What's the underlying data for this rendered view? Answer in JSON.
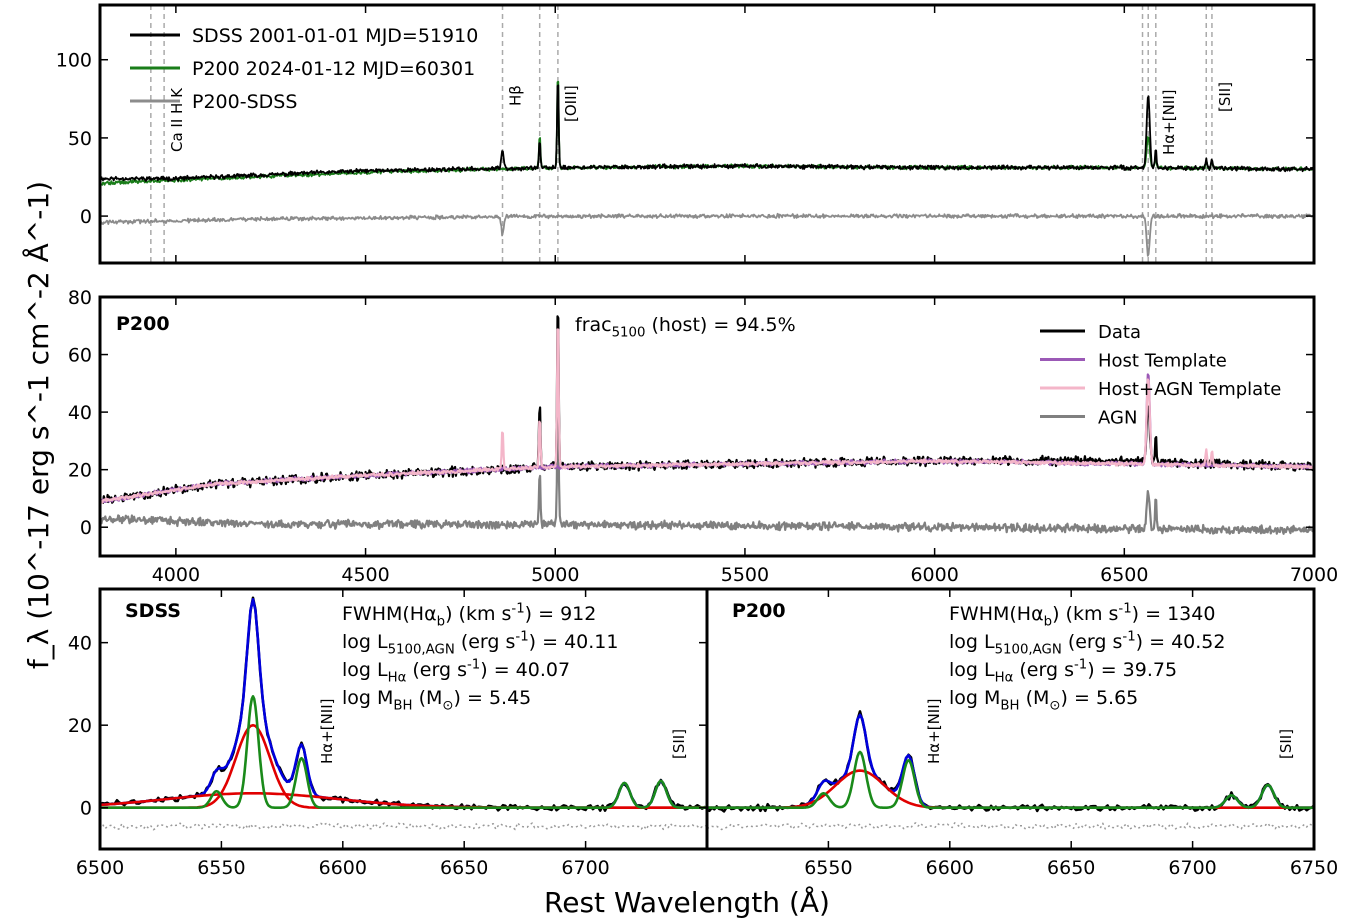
{
  "figure": {
    "ylabel": "f_λ (10^-17 erg s^-1 cm^-2 Å^-1)",
    "xlabel": "Rest Wavelength (Å)"
  },
  "chart_data": [
    {
      "type": "line",
      "panel": "top",
      "xlim": [
        3800,
        7000
      ],
      "ylim": [
        -30,
        135
      ],
      "y_ticks": [
        0,
        50,
        100
      ],
      "legend": {
        "placement": "top-left",
        "entries": [
          {
            "label": "SDSS 2001-01-01 MJD=51910",
            "color": "#000000"
          },
          {
            "label": "P200 2024-01-12 MJD=60301",
            "color": "#1a7d1a"
          },
          {
            "label": "P200-SDSS",
            "color": "#8c8c8c"
          }
        ]
      },
      "line_markers": [
        {
          "label": "Ca II H K",
          "x": [
            3934,
            3969
          ]
        },
        {
          "label": "Hβ",
          "x": [
            4861
          ]
        },
        {
          "label": "[OIII]",
          "x": [
            4959,
            5007
          ]
        },
        {
          "label": "Hα+[NII]",
          "x": [
            6548,
            6563,
            6583
          ]
        },
        {
          "label": "[SII]",
          "x": [
            6716,
            6731
          ]
        }
      ],
      "series": [
        {
          "name": "SDSS 2001-01-01 MJD=51910",
          "color": "#000000",
          "continuum": [
            [
              3800,
              24
            ],
            [
              4000,
              24
            ],
            [
              4500,
              29
            ],
            [
              5000,
              31
            ],
            [
              5500,
              32
            ],
            [
              6000,
              31
            ],
            [
              6500,
              31
            ],
            [
              7000,
              30
            ]
          ],
          "peaks": [
            {
              "x": 4861,
              "h": 12,
              "w": 3
            },
            {
              "x": 4959,
              "h": 18,
              "w": 2
            },
            {
              "x": 5007,
              "h": 60,
              "w": 2
            },
            {
              "x": 6563,
              "h": 47,
              "w": 4
            },
            {
              "x": 6583,
              "h": 12,
              "w": 2
            },
            {
              "x": 6716,
              "h": 6,
              "w": 2
            },
            {
              "x": 6731,
              "h": 6,
              "w": 2
            }
          ]
        },
        {
          "name": "P200 2024-01-12 MJD=60301",
          "color": "#1a7d1a",
          "continuum": [
            [
              3800,
              21
            ],
            [
              4000,
              23
            ],
            [
              4500,
              28
            ],
            [
              5000,
              31
            ],
            [
              5500,
              32
            ],
            [
              6000,
              31
            ],
            [
              6500,
              31
            ],
            [
              7000,
              30
            ]
          ],
          "peaks": [
            {
              "x": 4959,
              "h": 22,
              "w": 2
            },
            {
              "x": 5007,
              "h": 62,
              "w": 2
            },
            {
              "x": 6563,
              "h": 20,
              "w": 4
            },
            {
              "x": 6583,
              "h": 8,
              "w": 2
            },
            {
              "x": 6716,
              "h": 5,
              "w": 2
            },
            {
              "x": 6731,
              "h": 5,
              "w": 2
            }
          ]
        },
        {
          "name": "P200-SDSS",
          "color": "#8c8c8c",
          "continuum": [
            [
              3800,
              -4
            ],
            [
              4200,
              -2
            ],
            [
              5000,
              0
            ],
            [
              7000,
              0
            ]
          ],
          "peaks": [
            {
              "x": 4861,
              "h": -12,
              "w": 3
            },
            {
              "x": 6563,
              "h": -26,
              "w": 4
            }
          ]
        }
      ]
    },
    {
      "type": "line",
      "panel": "middle",
      "label": "P200",
      "annotation": "frac_5100 (host) = 94.5%",
      "xlim": [
        3800,
        7000
      ],
      "ylim": [
        -10,
        80
      ],
      "x_ticks": [
        4000,
        4500,
        5000,
        5500,
        6000,
        6500,
        7000
      ],
      "y_ticks": [
        0,
        20,
        40,
        60,
        80
      ],
      "legend": {
        "placement": "top-right",
        "entries": [
          {
            "label": "Data",
            "color": "#000000"
          },
          {
            "label": "Host Template",
            "color": "#9b59b6"
          },
          {
            "label": "Host+AGN Template",
            "color": "#f4b6c9"
          },
          {
            "label": "AGN",
            "color": "#808080"
          }
        ]
      },
      "series": [
        {
          "name": "Data",
          "color": "#000000",
          "continuum": [
            [
              3800,
              9
            ],
            [
              3950,
              12
            ],
            [
              4100,
              15
            ],
            [
              4500,
              18
            ],
            [
              5000,
              21
            ],
            [
              5500,
              22
            ],
            [
              6000,
              23
            ],
            [
              6500,
              23
            ],
            [
              7000,
              21
            ]
          ],
          "peaks": [
            {
              "x": 4959,
              "h": 22,
              "w": 2
            },
            {
              "x": 5007,
              "h": 58,
              "w": 2
            },
            {
              "x": 6563,
              "h": 20,
              "w": 4
            },
            {
              "x": 6583,
              "h": 10,
              "w": 2
            }
          ]
        },
        {
          "name": "Host Template",
          "color": "#9b59b6",
          "continuum": [
            [
              3800,
              9
            ],
            [
              3950,
              12
            ],
            [
              4100,
              15
            ],
            [
              4500,
              18
            ],
            [
              5000,
              21
            ],
            [
              5500,
              22
            ],
            [
              6000,
              23
            ],
            [
              6500,
              22
            ],
            [
              7000,
              21
            ]
          ],
          "peaks": [
            {
              "x": 6563,
              "h": 32,
              "w": 4
            }
          ]
        },
        {
          "name": "Host+AGN Template",
          "color": "#f4b6c9",
          "continuum": [
            [
              3800,
              9
            ],
            [
              3950,
              12
            ],
            [
              4100,
              15
            ],
            [
              4500,
              18
            ],
            [
              5000,
              21
            ],
            [
              5500,
              22
            ],
            [
              6000,
              23
            ],
            [
              6500,
              22
            ],
            [
              7000,
              21
            ]
          ],
          "peaks": [
            {
              "x": 4861,
              "h": 14,
              "w": 2
            },
            {
              "x": 4959,
              "h": 18,
              "w": 2
            },
            {
              "x": 5007,
              "h": 54,
              "w": 2
            },
            {
              "x": 6563,
              "h": 30,
              "w": 4
            },
            {
              "x": 6716,
              "h": 5,
              "w": 2
            },
            {
              "x": 6731,
              "h": 5,
              "w": 2
            }
          ]
        },
        {
          "name": "AGN",
          "color": "#808080",
          "continuum": [
            [
              3800,
              3
            ],
            [
              4200,
              1
            ],
            [
              5000,
              1
            ],
            [
              6000,
              0
            ],
            [
              7000,
              -1
            ]
          ],
          "peaks": [
            {
              "x": 4959,
              "h": 18,
              "w": 2
            },
            {
              "x": 5007,
              "h": 46,
              "w": 2
            },
            {
              "x": 6563,
              "h": 12,
              "w": 4
            },
            {
              "x": 6583,
              "h": 12,
              "w": 2
            }
          ]
        }
      ]
    },
    {
      "type": "line",
      "panel": "bottom-left",
      "label": "SDSS",
      "xlim": [
        6500,
        6750
      ],
      "ylim": [
        -10,
        53
      ],
      "x_ticks": [
        6500,
        6550,
        6600,
        6650,
        6700
      ],
      "y_ticks": [
        0,
        20,
        40
      ],
      "annotations": [
        "FWHM(Hα_b) (km s^-1) = 912",
        "log L_5100,AGN (erg s^-1) = 40.11",
        "log L_Hα (erg s^-1) = 40.07",
        "log M_BH (M_⊙) = 5.45"
      ],
      "line_markers": [
        {
          "label": "Hα+[NII]",
          "x": 6593
        },
        {
          "label": "[SII]",
          "x": 6738
        }
      ],
      "components": {
        "broad": [
          {
            "x": 6563,
            "h": 20,
            "w": 7
          },
          {
            "x": 6563,
            "h": 3.5,
            "w": 35
          }
        ],
        "narrow": [
          {
            "x": 6548,
            "h": 4,
            "w": 2.3
          },
          {
            "x": 6563,
            "h": 27,
            "w": 2.3
          },
          {
            "x": 6583,
            "h": 12,
            "w": 2.3
          },
          {
            "x": 6716,
            "h": 6,
            "w": 2.3
          },
          {
            "x": 6731,
            "h": 6.5,
            "w": 2.3
          }
        ],
        "colors": {
          "data": "#000000",
          "model": "#0000dd",
          "broad": "#e00000",
          "narrow": "#1a8a1a",
          "residual": "#999999"
        }
      }
    },
    {
      "type": "line",
      "panel": "bottom-right",
      "label": "P200",
      "xlim": [
        6500,
        6750
      ],
      "ylim": [
        -10,
        53
      ],
      "x_ticks": [
        6550,
        6600,
        6650,
        6700,
        6750
      ],
      "annotations": [
        "FWHM(Hα_b) (km s^-1) = 1340",
        "log L_5100,AGN (erg s^-1) = 40.52",
        "log L_Hα (erg s^-1) = 39.75",
        "log M_BH (M_⊙) = 5.65"
      ],
      "line_markers": [
        {
          "label": "Hα+[NII]",
          "x": 6593
        },
        {
          "label": "[SII]",
          "x": 6738
        }
      ],
      "components": {
        "broad": [
          {
            "x": 6563,
            "h": 9,
            "w": 10
          }
        ],
        "narrow": [
          {
            "x": 6548,
            "h": 3.5,
            "w": 2.5
          },
          {
            "x": 6563,
            "h": 13.5,
            "w": 2.5
          },
          {
            "x": 6583,
            "h": 11.5,
            "w": 2.5
          },
          {
            "x": 6716,
            "h": 3,
            "w": 2.5
          },
          {
            "x": 6731,
            "h": 5.5,
            "w": 2.5
          }
        ],
        "colors": {
          "data": "#000000",
          "model": "#0000dd",
          "broad": "#e00000",
          "narrow": "#1a8a1a",
          "residual": "#999999"
        }
      }
    }
  ]
}
